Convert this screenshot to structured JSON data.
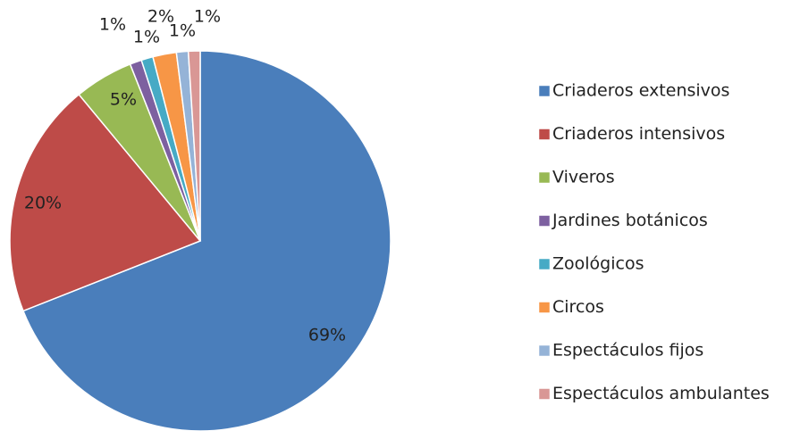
{
  "chart_data": {
    "type": "pie",
    "categories": [
      "Criaderos extensivos",
      "Criaderos intensivos",
      "Viveros",
      "Jardines botánicos",
      "Zoológicos",
      "Circos",
      "Espectáculos fijos",
      "Espectáculos ambulantes"
    ],
    "values": [
      69,
      20,
      5,
      1,
      1,
      2,
      1,
      1
    ],
    "value_labels": [
      "69%",
      "20%",
      "5%",
      "1%",
      "1%",
      "2%",
      "1%",
      "1%"
    ],
    "colors": [
      "#4a7ebb",
      "#be4b48",
      "#98b954",
      "#7d60a0",
      "#46aac5",
      "#f79646",
      "#95b3d7",
      "#d99795"
    ],
    "legend": "right"
  }
}
